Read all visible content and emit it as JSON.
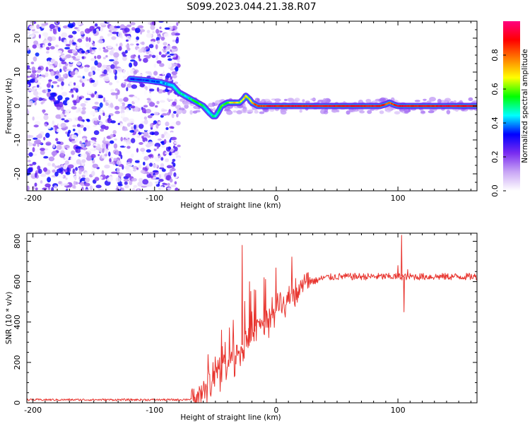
{
  "title": "S099.2023.044.21.38.R07",
  "chart_data": [
    {
      "type": "heatmap",
      "xlabel": "Height of straight line (km)",
      "ylabel": "Frequency (Hz)",
      "xlim": [
        -205,
        165
      ],
      "ylim": [
        -25,
        25
      ],
      "xticks": [
        -200,
        -100,
        0,
        100
      ],
      "yticks": [
        -20,
        -10,
        0,
        10,
        20
      ],
      "colorbar": {
        "label": "Normalized spectral amplitude",
        "range": [
          0,
          1
        ],
        "ticks": [
          "0.0",
          "0.2",
          "0.4",
          "0.6",
          "0.8"
        ],
        "colors": [
          "#ffffff",
          "#c9a6f5",
          "#7a2cf0",
          "#0000ff",
          "#00ffff",
          "#00ff00",
          "#ffff00",
          "#ff7f00",
          "#ff0000",
          "#ff0080"
        ]
      },
      "noise_region": {
        "x_from": -205,
        "x_to": -80,
        "peak_amplitude": 0.35
      },
      "ridge": {
        "x": [
          -120,
          -105,
          -95,
          -85,
          -80,
          -75,
          -70,
          -65,
          -60,
          -55,
          -52,
          -50,
          -48,
          -45,
          -40,
          -35,
          -30,
          -27,
          -25,
          -22,
          -20,
          -15,
          0,
          50,
          85,
          90,
          93,
          96,
          100,
          165
        ],
        "frequency": [
          8,
          7.5,
          7,
          6,
          4,
          3,
          2,
          1,
          0,
          -2,
          -3,
          -3,
          -2,
          0,
          1,
          1,
          1,
          2,
          3,
          2,
          1,
          0,
          0,
          0,
          0,
          0.5,
          1,
          0.5,
          0,
          0
        ],
        "amplitude": [
          0.3,
          0.35,
          0.4,
          0.45,
          0.5,
          0.45,
          0.5,
          0.6,
          0.5,
          0.45,
          0.5,
          0.45,
          0.5,
          0.55,
          0.6,
          0.7,
          0.65,
          0.7,
          0.7,
          0.65,
          0.75,
          0.85,
          0.9,
          0.9,
          0.9,
          0.85,
          0.8,
          0.85,
          0.9,
          0.9
        ]
      }
    },
    {
      "type": "line",
      "xlabel": "Height of straight line (km)",
      "ylabel": "SNR (10 * v/v)",
      "xlim": [
        -205,
        165
      ],
      "ylim": [
        0,
        840
      ],
      "xticks": [
        -200,
        -100,
        0,
        100
      ],
      "yticks": [
        0,
        200,
        400,
        600,
        800
      ],
      "series": [
        {
          "color": "#e8342e",
          "envelope": {
            "x": [
              -205,
              -80,
              -70,
              -65,
              -60,
              -55,
              -50,
              -45,
              -40,
              -35,
              -30,
              -25,
              -20,
              -15,
              -10,
              -5,
              0,
              10,
              20,
              30,
              40,
              50,
              60,
              80,
              100,
              120,
              140,
              165
            ],
            "y": [
              15,
              15,
              18,
              30,
              60,
              100,
              140,
              180,
              200,
              240,
              270,
              310,
              340,
              370,
              400,
              440,
              470,
              520,
              570,
              600,
              620,
              625,
              625,
              625,
              625,
              625,
              625,
              625
            ]
          },
          "spikes": [
            {
              "x": -70,
              "y": 22
            },
            {
              "x": -52,
              "y": 200
            },
            {
              "x": -45,
              "y": 360
            },
            {
              "x": -42,
              "y": 300
            },
            {
              "x": -28,
              "y": 780
            },
            {
              "x": -22,
              "y": 600
            },
            {
              "x": -18,
              "y": 560
            },
            {
              "x": -10,
              "y": 620
            },
            {
              "x": 100,
              "y": 680
            },
            {
              "x": 103,
              "y": 830
            },
            {
              "x": 105,
              "y": 450
            },
            {
              "x": 108,
              "y": 660
            }
          ]
        }
      ]
    }
  ]
}
